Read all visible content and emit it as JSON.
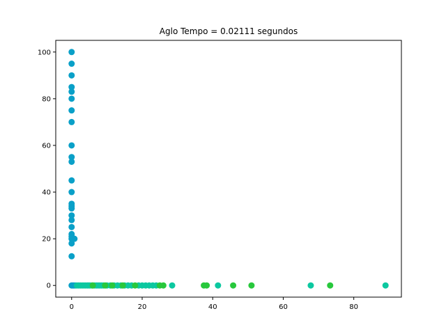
{
  "chart_data": {
    "type": "scatter",
    "title": "Aglo Tempo = 0.02111 segundos",
    "xlabel": "",
    "ylabel": "",
    "xlim": [
      -4.5,
      93.5
    ],
    "ylim": [
      -5,
      105
    ],
    "x_ticks": [
      0,
      20,
      40,
      60,
      80
    ],
    "y_ticks": [
      0,
      20,
      40,
      60,
      80,
      100
    ],
    "grid": false,
    "legend": "none",
    "colors": {
      "blue": "#0aa0c8",
      "teal": "#0cc8a0",
      "green": "#28c83c",
      "axes": "#000000",
      "background": "#ffffff"
    },
    "series": [
      {
        "color_key": "blue",
        "points": [
          [
            0,
            100
          ],
          [
            0,
            95
          ],
          [
            0,
            90
          ],
          [
            0,
            85
          ],
          [
            0,
            83
          ],
          [
            0,
            80
          ],
          [
            0,
            75
          ],
          [
            0,
            70
          ],
          [
            0,
            60
          ],
          [
            0,
            55
          ],
          [
            0,
            53
          ],
          [
            0,
            45
          ],
          [
            0,
            40
          ],
          [
            0,
            35
          ],
          [
            0,
            34
          ],
          [
            0,
            33
          ],
          [
            0,
            30
          ],
          [
            0,
            28
          ],
          [
            0,
            25
          ],
          [
            0,
            22
          ],
          [
            0,
            21
          ],
          [
            0,
            20
          ],
          [
            0.5,
            20
          ],
          [
            0.8,
            20
          ],
          [
            0,
            18
          ],
          [
            0,
            12.5
          ],
          [
            0,
            0
          ],
          [
            0.3,
            0
          ],
          [
            0.6,
            0
          ],
          [
            1,
            0
          ]
        ]
      },
      {
        "color_key": "teal",
        "points": [
          [
            1.5,
            0
          ],
          [
            2,
            0
          ],
          [
            2.5,
            0
          ],
          [
            3,
            0
          ],
          [
            3.5,
            0
          ],
          [
            4,
            0
          ],
          [
            4.5,
            0
          ],
          [
            5,
            0
          ],
          [
            5.5,
            0
          ],
          [
            6,
            0
          ],
          [
            6.5,
            0
          ],
          [
            7,
            0
          ],
          [
            7.5,
            0
          ],
          [
            8,
            0
          ],
          [
            8.5,
            0
          ],
          [
            9,
            0
          ],
          [
            10,
            0
          ],
          [
            11,
            0
          ],
          [
            12,
            0
          ],
          [
            13,
            0
          ],
          [
            14,
            0
          ],
          [
            15,
            0
          ],
          [
            16,
            0
          ],
          [
            17,
            0
          ],
          [
            19,
            0
          ],
          [
            20,
            0
          ],
          [
            21,
            0
          ],
          [
            22,
            0
          ],
          [
            23,
            0
          ],
          [
            24,
            0
          ],
          [
            28.5,
            0
          ],
          [
            41.5,
            0
          ],
          [
            67.8,
            0
          ],
          [
            89,
            0
          ]
        ]
      },
      {
        "color_key": "green",
        "points": [
          [
            6,
            0
          ],
          [
            9.5,
            0
          ],
          [
            11.5,
            0
          ],
          [
            14.5,
            0
          ],
          [
            18,
            0
          ],
          [
            25,
            0
          ],
          [
            26,
            0
          ],
          [
            37.5,
            0
          ],
          [
            38.3,
            0
          ],
          [
            45.8,
            0
          ],
          [
            51,
            0
          ],
          [
            73.3,
            0
          ]
        ]
      }
    ]
  }
}
